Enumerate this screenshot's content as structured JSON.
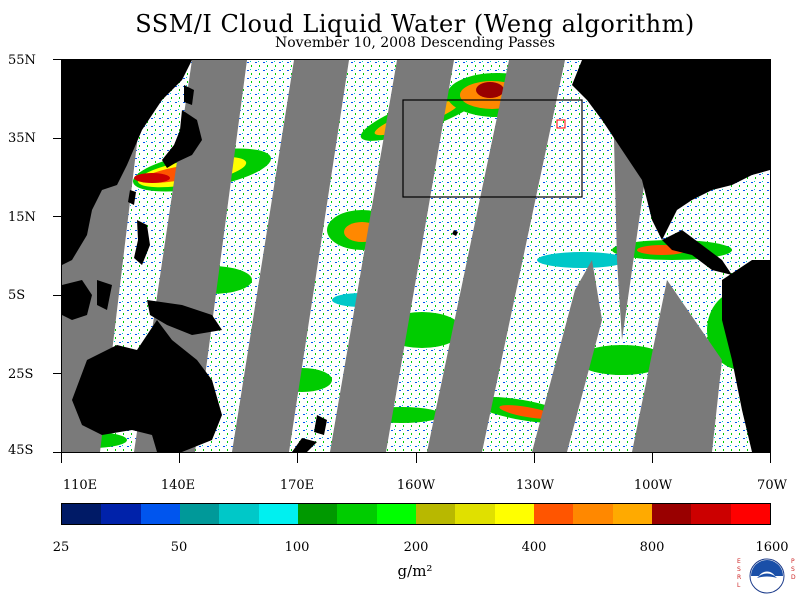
{
  "title": "SSM/I Cloud Liquid Water (Weng algorithm)",
  "subtitle": "November 10, 2008  Descending Passes",
  "lat_labels": [
    "55N",
    "35N",
    "15N",
    "5S",
    "25S",
    "45S"
  ],
  "lon_labels": [
    "110E",
    "140E",
    "170E",
    "160W",
    "130W",
    "100W",
    "70W"
  ],
  "colorbar": {
    "labels": [
      "25",
      "50",
      "100",
      "200",
      "400",
      "800",
      "1600"
    ],
    "colors": [
      "#001a66",
      "#0022aa",
      "#0055ee",
      "#009999",
      "#00c8c8",
      "#00f0f0",
      "#009900",
      "#00cc00",
      "#00ff00",
      "#b8b800",
      "#e0e000",
      "#ffff00",
      "#ff5500",
      "#ff8800",
      "#ffaa00",
      "#990000",
      "#cc0000",
      "#ff0000"
    ],
    "units": "g/m²"
  },
  "colors": {
    "land": "#000000",
    "no_data_swath": "#7a7a7a",
    "box_outline": "#000000",
    "small_box": "#ff0000"
  },
  "logo": {
    "left_text": "ESRL",
    "right_text": "PSD",
    "icon": "noaa-logo-icon"
  }
}
